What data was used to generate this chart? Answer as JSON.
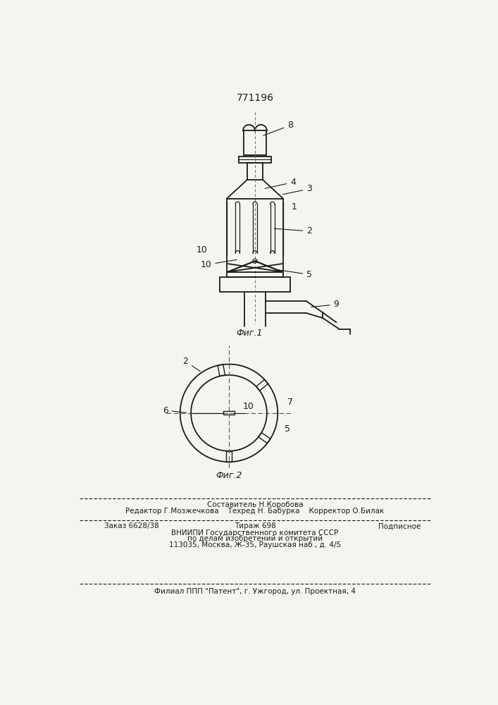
{
  "title": "771196",
  "fig1_label": "Фиг.1",
  "fig2_label": "Фиг.2",
  "bg_color": "#f5f5f0",
  "line_color": "#1a1a1a",
  "footer_line1": "Составитель Н.Коробова",
  "footer_line2": "Редактор Г.Мозжечкова    Техред Н. Бабурка    Корректор О.Билак",
  "footer_line3a": "Заказ 6628/38",
  "footer_line3b": "Тираж 698",
  "footer_line3c": "Подписное",
  "footer_line4": "ВНИИПИ Государственного комитета СССР",
  "footer_line5": "по делам изобретений и открытий",
  "footer_line6": "113035, Москва, Ж-35, Раушская наб., д. 4/5",
  "footer_line7": "Филиал ППП \"Патент\", г. Ужгород, ул. Проектная, 4"
}
